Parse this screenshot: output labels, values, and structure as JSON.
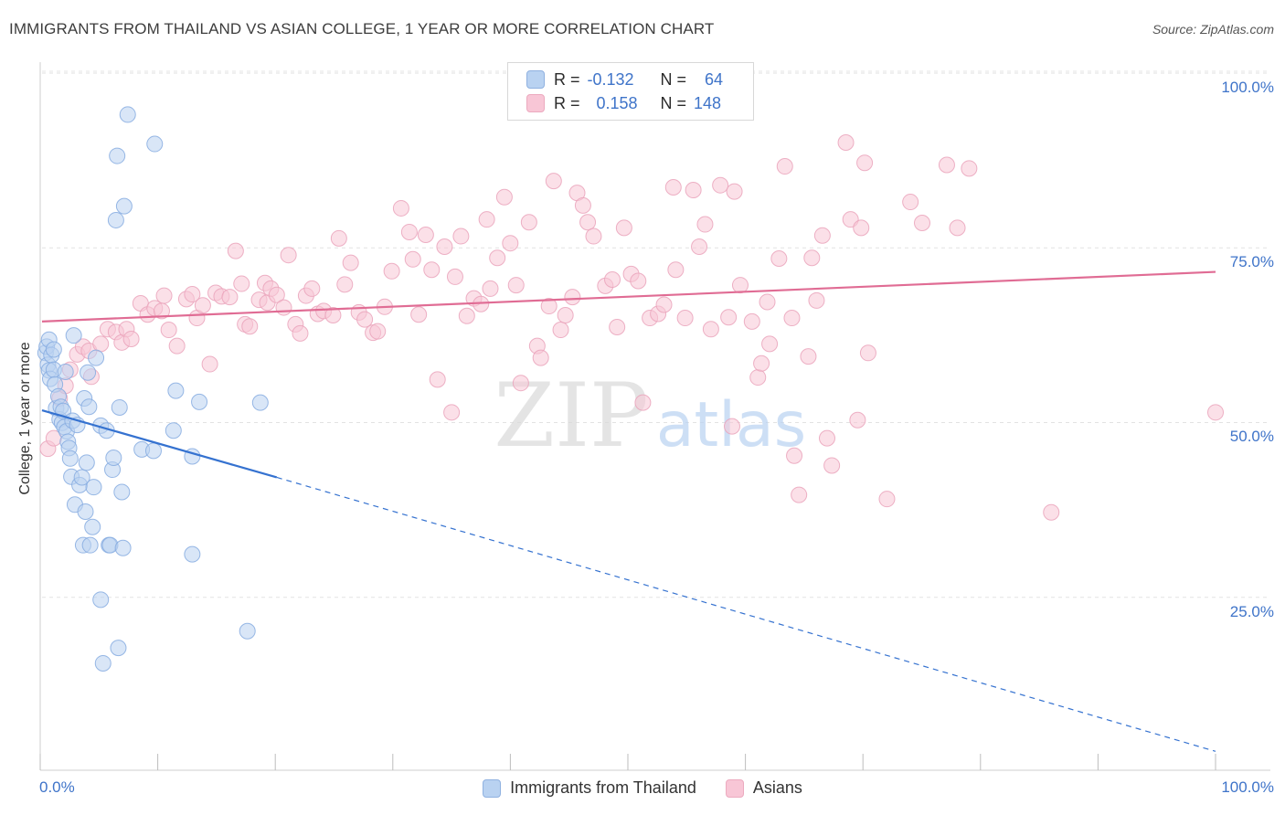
{
  "chart_data": {
    "type": "scatter",
    "title": "IMMIGRANTS FROM THAILAND VS ASIAN COLLEGE, 1 YEAR OR MORE CORRELATION CHART",
    "source": "Source: ZipAtlas.com",
    "xlabel": "",
    "ylabel": "College, 1 year or more",
    "x_tick_labels": [
      "0.0%",
      "100.0%"
    ],
    "y_tick_labels": [
      "100.0%",
      "75.0%",
      "50.0%",
      "25.0%"
    ],
    "y_tick_values": [
      100,
      75,
      50,
      25
    ],
    "xlim": [
      0,
      100
    ],
    "ylim": [
      0,
      100
    ],
    "watermark": {
      "zip": "ZIP",
      "atlas": "atlas"
    },
    "colors": {
      "blue": "#5b8fd8",
      "blue_fill": "#b9d2f1",
      "pink": "#e06c94",
      "pink_fill": "#f8c6d6",
      "axis_text": "#3f74c9"
    },
    "legend": {
      "rows": [
        {
          "r_label": "R =",
          "r_value": "-0.132",
          "n_label": "N =",
          "n_value": "64"
        },
        {
          "r_label": "R =",
          "r_value": "0.158",
          "n_label": "N =",
          "n_value": "148"
        }
      ]
    },
    "series": [
      {
        "name": "Immigrants from Thailand",
        "color": "#5b8fd8",
        "trend": {
          "x0": 0,
          "y0": 51.5,
          "x1": 20,
          "y1": 41.9,
          "dash_to_x": 100,
          "dash_to_y": 2.7
        },
        "points": [
          [
            0.3,
            59.7
          ],
          [
            0.4,
            60.6
          ],
          [
            0.5,
            58.0
          ],
          [
            0.6,
            61.6
          ],
          [
            0.6,
            57.2
          ],
          [
            0.7,
            56.0
          ],
          [
            0.8,
            59.4
          ],
          [
            1.0,
            60.2
          ],
          [
            1.0,
            57.3
          ],
          [
            1.1,
            55.2
          ],
          [
            1.2,
            51.8
          ],
          [
            1.4,
            53.5
          ],
          [
            1.5,
            50.2
          ],
          [
            1.6,
            52.0
          ],
          [
            1.7,
            49.7
          ],
          [
            1.8,
            51.4
          ],
          [
            1.9,
            49.1
          ],
          [
            2.0,
            57.0
          ],
          [
            2.1,
            48.5
          ],
          [
            2.2,
            47.0
          ],
          [
            2.3,
            46.1
          ],
          [
            2.4,
            44.6
          ],
          [
            2.5,
            42.0
          ],
          [
            2.6,
            50.0
          ],
          [
            2.7,
            62.2
          ],
          [
            2.8,
            38.0
          ],
          [
            3.0,
            49.4
          ],
          [
            3.2,
            40.8
          ],
          [
            3.4,
            41.9
          ],
          [
            3.5,
            32.2
          ],
          [
            3.6,
            53.2
          ],
          [
            3.7,
            37.0
          ],
          [
            3.8,
            44.0
          ],
          [
            3.9,
            56.9
          ],
          [
            4.0,
            52.0
          ],
          [
            4.1,
            32.2
          ],
          [
            4.3,
            34.8
          ],
          [
            4.4,
            40.5
          ],
          [
            4.6,
            59.0
          ],
          [
            5.0,
            24.4
          ],
          [
            5.0,
            49.3
          ],
          [
            5.2,
            15.3
          ],
          [
            5.5,
            48.6
          ],
          [
            5.7,
            32.2
          ],
          [
            5.8,
            32.2
          ],
          [
            6.0,
            43.0
          ],
          [
            6.1,
            44.7
          ],
          [
            6.3,
            78.7
          ],
          [
            6.4,
            87.9
          ],
          [
            6.5,
            17.5
          ],
          [
            6.6,
            51.9
          ],
          [
            6.8,
            39.8
          ],
          [
            6.9,
            31.8
          ],
          [
            7.0,
            80.7
          ],
          [
            7.3,
            93.8
          ],
          [
            8.5,
            45.9
          ],
          [
            9.5,
            45.7
          ],
          [
            9.6,
            89.6
          ],
          [
            11.2,
            48.6
          ],
          [
            11.4,
            54.3
          ],
          [
            12.8,
            30.9
          ],
          [
            12.8,
            44.9
          ],
          [
            13.4,
            52.7
          ],
          [
            17.5,
            19.9
          ],
          [
            18.6,
            52.6
          ]
        ]
      },
      {
        "name": "Asians",
        "color": "#e06c94",
        "trend": {
          "x0": 0,
          "y0": 64.2,
          "x1": 100,
          "y1": 71.3
        },
        "points": [
          [
            0.5,
            46.0
          ],
          [
            1.0,
            47.5
          ],
          [
            1.5,
            53.2
          ],
          [
            2.0,
            55.0
          ],
          [
            2.4,
            57.3
          ],
          [
            3.0,
            59.5
          ],
          [
            3.5,
            60.6
          ],
          [
            4.0,
            60.0
          ],
          [
            4.2,
            56.3
          ],
          [
            5.0,
            61.0
          ],
          [
            5.6,
            63.1
          ],
          [
            6.3,
            62.7
          ],
          [
            6.8,
            61.2
          ],
          [
            7.2,
            63.1
          ],
          [
            7.6,
            61.7
          ],
          [
            8.4,
            66.8
          ],
          [
            9.0,
            65.2
          ],
          [
            9.6,
            66.1
          ],
          [
            10.2,
            65.7
          ],
          [
            10.4,
            67.9
          ],
          [
            10.8,
            63.0
          ],
          [
            11.5,
            60.7
          ],
          [
            12.3,
            67.4
          ],
          [
            12.8,
            68.1
          ],
          [
            13.2,
            64.7
          ],
          [
            13.7,
            66.5
          ],
          [
            14.3,
            58.1
          ],
          [
            14.8,
            68.3
          ],
          [
            15.3,
            67.8
          ],
          [
            16.0,
            67.7
          ],
          [
            16.5,
            74.3
          ],
          [
            17.0,
            69.6
          ],
          [
            17.3,
            63.8
          ],
          [
            17.7,
            63.5
          ],
          [
            18.5,
            67.3
          ],
          [
            19.0,
            69.7
          ],
          [
            19.2,
            66.9
          ],
          [
            19.5,
            68.9
          ],
          [
            20.0,
            68.0
          ],
          [
            20.6,
            66.2
          ],
          [
            21.0,
            73.7
          ],
          [
            21.6,
            63.8
          ],
          [
            22.0,
            62.5
          ],
          [
            22.5,
            67.9
          ],
          [
            23.0,
            68.9
          ],
          [
            23.5,
            65.3
          ],
          [
            24.0,
            65.7
          ],
          [
            24.8,
            65.1
          ],
          [
            25.3,
            76.1
          ],
          [
            25.8,
            69.5
          ],
          [
            26.3,
            72.6
          ],
          [
            27.0,
            65.5
          ],
          [
            27.5,
            64.5
          ],
          [
            28.2,
            62.6
          ],
          [
            28.6,
            62.8
          ],
          [
            29.2,
            66.3
          ],
          [
            29.8,
            71.4
          ],
          [
            30.6,
            80.4
          ],
          [
            31.3,
            77.0
          ],
          [
            31.6,
            73.1
          ],
          [
            32.1,
            65.2
          ],
          [
            32.7,
            76.6
          ],
          [
            33.2,
            71.6
          ],
          [
            33.7,
            55.9
          ],
          [
            34.3,
            74.9
          ],
          [
            34.9,
            51.2
          ],
          [
            35.2,
            70.6
          ],
          [
            35.7,
            76.4
          ],
          [
            36.2,
            65.0
          ],
          [
            36.8,
            67.5
          ],
          [
            37.4,
            66.7
          ],
          [
            37.9,
            78.8
          ],
          [
            38.2,
            68.9
          ],
          [
            38.8,
            73.3
          ],
          [
            39.4,
            82.0
          ],
          [
            39.9,
            75.4
          ],
          [
            40.4,
            69.4
          ],
          [
            40.8,
            55.4
          ],
          [
            41.5,
            78.4
          ],
          [
            42.2,
            60.7
          ],
          [
            42.5,
            59.0
          ],
          [
            43.2,
            66.4
          ],
          [
            43.6,
            84.3
          ],
          [
            44.2,
            63.0
          ],
          [
            44.6,
            65.1
          ],
          [
            45.2,
            67.7
          ],
          [
            45.6,
            82.6
          ],
          [
            46.1,
            80.8
          ],
          [
            46.5,
            78.4
          ],
          [
            47.0,
            76.4
          ],
          [
            48.0,
            69.3
          ],
          [
            48.6,
            70.2
          ],
          [
            49.0,
            63.4
          ],
          [
            49.6,
            77.6
          ],
          [
            50.2,
            71.0
          ],
          [
            50.8,
            70.0
          ],
          [
            51.2,
            52.6
          ],
          [
            51.8,
            64.7
          ],
          [
            52.5,
            65.3
          ],
          [
            53.0,
            66.6
          ],
          [
            53.8,
            83.4
          ],
          [
            54.0,
            71.6
          ],
          [
            54.8,
            64.7
          ],
          [
            55.5,
            83.0
          ],
          [
            56.0,
            74.9
          ],
          [
            56.5,
            78.1
          ],
          [
            57.0,
            63.1
          ],
          [
            57.8,
            83.7
          ],
          [
            58.5,
            64.8
          ],
          [
            58.8,
            49.2
          ],
          [
            59.0,
            82.8
          ],
          [
            59.5,
            69.4
          ],
          [
            60.5,
            64.2
          ],
          [
            61.0,
            56.2
          ],
          [
            61.3,
            58.2
          ],
          [
            61.8,
            67.0
          ],
          [
            62.0,
            61.0
          ],
          [
            62.8,
            73.2
          ],
          [
            63.3,
            86.4
          ],
          [
            63.9,
            64.7
          ],
          [
            64.1,
            45.0
          ],
          [
            64.5,
            39.4
          ],
          [
            65.3,
            59.2
          ],
          [
            65.6,
            73.3
          ],
          [
            66.0,
            67.2
          ],
          [
            66.5,
            76.5
          ],
          [
            66.9,
            47.5
          ],
          [
            67.3,
            43.6
          ],
          [
            68.5,
            89.8
          ],
          [
            68.9,
            78.8
          ],
          [
            69.5,
            50.1
          ],
          [
            69.8,
            77.6
          ],
          [
            70.1,
            86.9
          ],
          [
            70.4,
            59.7
          ],
          [
            72.0,
            38.8
          ],
          [
            74.0,
            81.3
          ],
          [
            75.0,
            78.3
          ],
          [
            77.1,
            86.6
          ],
          [
            78.0,
            77.6
          ],
          [
            79.0,
            86.1
          ],
          [
            86.0,
            36.9
          ],
          [
            100.0,
            51.2
          ]
        ]
      }
    ]
  }
}
